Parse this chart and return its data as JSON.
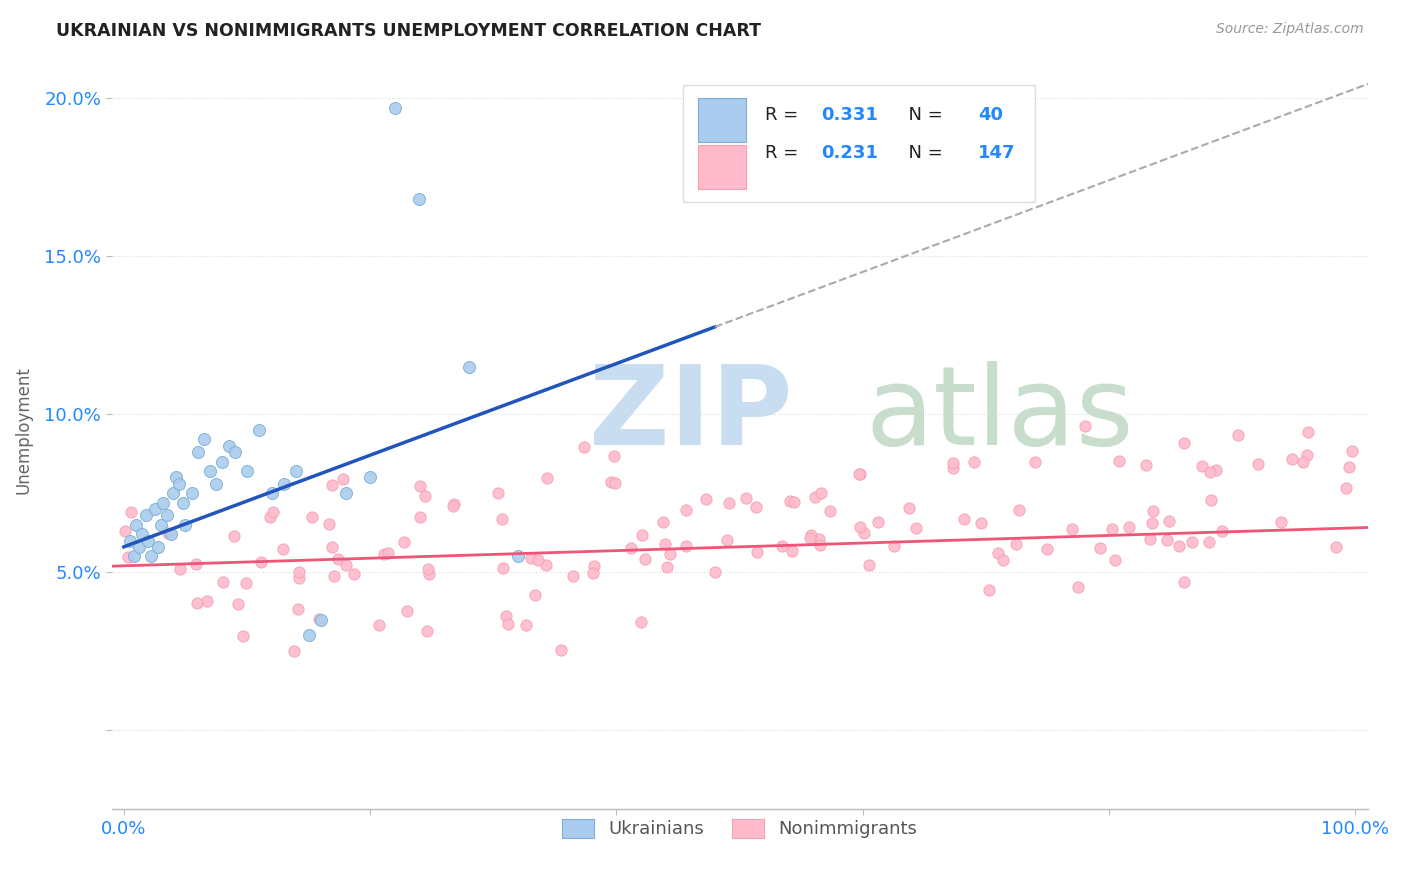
{
  "title": "UKRAINIAN VS NONIMMIGRANTS UNEMPLOYMENT CORRELATION CHART",
  "source": "Source: ZipAtlas.com",
  "ylabel": "Unemployment",
  "blue_color": "#7BAFD4",
  "pink_color": "#F4A0B0",
  "blue_line_color": "#2255BB",
  "pink_line_color": "#EE5577",
  "blue_fill": "#AACCEE",
  "pink_fill": "#FFBBCC",
  "r_n_color": "#2288FF",
  "title_color": "#222222",
  "source_color": "#999999",
  "axis_color": "#BBBBBB",
  "grid_color": "#DDDDDD",
  "watermark_zip_color": "#C8DDEF",
  "watermark_atlas_color": "#C8DDCC",
  "xlim": [
    -0.01,
    1.01
  ],
  "ylim": [
    -0.025,
    0.215
  ],
  "yticks": [
    0.0,
    0.05,
    0.1,
    0.15,
    0.2
  ],
  "ytick_labels": [
    "",
    "5.0%",
    "10.0%",
    "15.0%",
    "20.0%"
  ],
  "xtick_positions": [
    0.0,
    1.0
  ],
  "xtick_labels": [
    "0.0%",
    "100.0%"
  ]
}
